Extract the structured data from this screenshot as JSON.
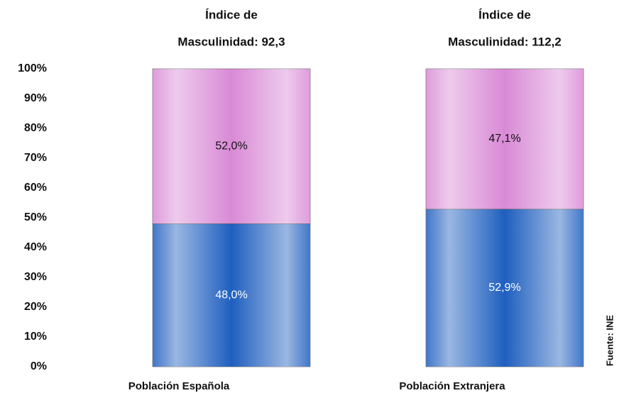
{
  "chart_data": {
    "type": "stacked_bar",
    "bar_titles": [
      [
        "Índice de",
        "Masculinidad: 92,3"
      ],
      [
        "Índice de",
        "Masculinidad: 112,2"
      ]
    ],
    "categories": [
      "Población Española",
      "Población Extranjera"
    ],
    "series": [
      {
        "color": "#1f5fbf",
        "values": [
          48.0,
          52.9
        ],
        "value_labels": [
          "48,0%",
          "52,9%"
        ]
      },
      {
        "color": "#d98ad6",
        "values": [
          52.0,
          47.1
        ],
        "value_labels": [
          "52,0%",
          "47,1%"
        ]
      }
    ],
    "ylim": [
      0,
      100
    ],
    "yticks": [
      {
        "value": 0,
        "label": "0%"
      },
      {
        "value": 10,
        "label": "10%"
      },
      {
        "value": 20,
        "label": "20%"
      },
      {
        "value": 30,
        "label": "30%"
      },
      {
        "value": 40,
        "label": "40%"
      },
      {
        "value": 50,
        "label": "50%"
      },
      {
        "value": 60,
        "label": "60%"
      },
      {
        "value": 70,
        "label": "70%"
      },
      {
        "value": 80,
        "label": "80%"
      },
      {
        "value": 90,
        "label": "90%"
      },
      {
        "value": 100,
        "label": "100%"
      }
    ],
    "source": "Fuente: INE"
  }
}
